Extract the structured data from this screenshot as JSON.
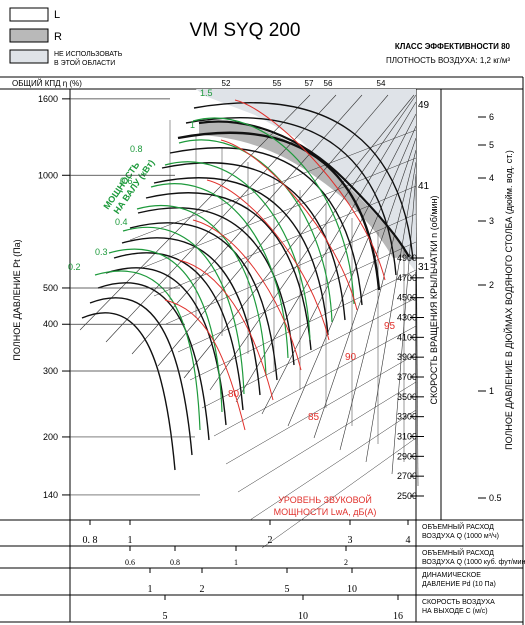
{
  "title": "VM SYQ 200",
  "legend": [
    {
      "label": "L",
      "fill": "#ffffff"
    },
    {
      "label": "R",
      "fill": "#b9b9b9"
    },
    {
      "label": "НЕ ИСПОЛЬЗОВАТЬ\nВ ЭТОЙ ОБЛАСТИ",
      "fill": "#dfe3e8"
    }
  ],
  "efficiency_class": "КЛАСС ЭФФЕКТИВНОСТИ 80",
  "air_density": "ПЛОТНОСТЬ ВОЗДУХА: 1,2 кг/м³",
  "efficiency_axis_label": "ОБЩИЙ КПД η (%)",
  "efficiency_ticks": [
    "52",
    "55",
    "57",
    "56",
    "54"
  ],
  "power_label": "МОЩНОСТЬ\nНА ВАЛУ (кВт)",
  "power_values": [
    "0.2",
    "0.3",
    "0.4",
    "0.6",
    "0.8",
    "1",
    "1.5"
  ],
  "blade_angles": [
    "49",
    "41",
    "31"
  ],
  "sound_label": "УРОВЕНЬ ЗВУКОВОЙ\nМОЩНОСТИ LwA, дБ(А)",
  "sound_values": [
    "80",
    "85",
    "90",
    "95"
  ],
  "left_axis_label": "ПОЛНОЕ ДАВЛЕНИЕ Pt (Па)",
  "rpm_axis_label": "СКОРОСТЬ ВРАЩЕНИЯ КРЫЛЬЧАТКИ n (об/мин)",
  "right_axis_label": "ПОЛНОЕ ДАВЛЕНИЕ В ДЮЙМАХ ВОДЯНОГО СТОЛБА (дюйм. вод. ст.)",
  "bottom_scales": [
    {
      "label": "ОБЪЕМНЫЙ РАСХОД\nВОЗДУХА Q (1000 м³/ч)",
      "ticks": [
        "0. 8",
        "1",
        "2",
        "3",
        "4"
      ]
    },
    {
      "label": "ОБЪЕМНЫЙ РАСХОД\nВОЗДУХА Q (1000 куб. фут/мин)",
      "ticks": [
        "0.6",
        "0.8",
        "1",
        "2"
      ]
    },
    {
      "label": "ДИНАМИЧЕСКОЕ\nДАВЛЕНИЕ Pd (10 Па)",
      "ticks": [
        "1",
        "2",
        "5",
        "10"
      ]
    },
    {
      "label": "СКОРОСТЬ ВОЗДУХА\nНА ВЫХОДЕ C (м/с)",
      "ticks": [
        "5",
        "10",
        "16"
      ]
    }
  ],
  "chart_data": {
    "type": "line",
    "title": "VM SYQ 200",
    "xlabel": "ОБЪЕМНЫЙ РАСХОД ВОЗДУХА Q (1000 м³/ч)",
    "ylabel": "ПОЛНОЕ ДАВЛЕНИЕ Pt (Па)",
    "ylog": true,
    "xlog": true,
    "xlim": [
      0.8,
      4
    ],
    "ylim": [
      140,
      1600
    ],
    "y_ticks": [
      140,
      200,
      300,
      400,
      500,
      1000,
      1600
    ],
    "rpm_ticks": [
      2500,
      2700,
      2900,
      3100,
      3300,
      3500,
      3700,
      3900,
      4100,
      4300,
      4500,
      4700,
      4900
    ],
    "inwg_ticks": [
      0.5,
      1,
      2,
      3,
      4,
      5,
      6
    ],
    "colors": {
      "black": "#111111",
      "green": "#1e9a3c",
      "red": "#e0312c",
      "grid": "#333333"
    }
  }
}
